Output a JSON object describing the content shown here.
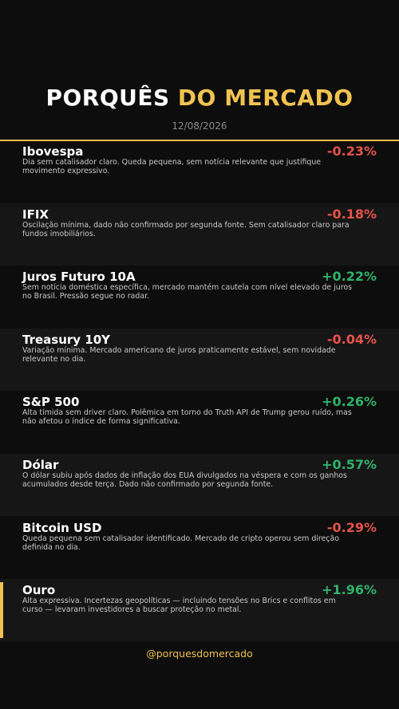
{
  "header": {
    "title_main": "PORQUÊS",
    "title_accent": "DO MERCADO",
    "date": "12/08/2026"
  },
  "items": [
    {
      "name": "Ibovespa",
      "change": "-0.23%",
      "description": "Dia sem catalisador claro. Queda pequena, sem notícia relevante que justifique movimento expressivo."
    },
    {
      "name": "IFIX",
      "change": "-0.18%",
      "description": "Oscilação mínima, dado não confirmado por segunda fonte. Sem catalisador claro para fundos imobiliários."
    },
    {
      "name": "Juros Futuro 10A",
      "change": "+0.22%",
      "description": "Sem notícia doméstica específica, mercado mantém cautela com nível elevado de juros no Brasil. Pressão segue no radar."
    },
    {
      "name": "Treasury 10Y",
      "change": "-0.04%",
      "description": "Variação mínima. Mercado americano de juros praticamente estável, sem novidade relevante no dia."
    },
    {
      "name": "S&P 500",
      "change": "+0.26%",
      "description": "Alta tímida sem driver claro. Polêmica em torno do Truth API de Trump gerou ruído, mas não afetou o índice de forma significativa."
    },
    {
      "name": "Dólar",
      "change": "+0.57%",
      "description": "O dólar subiu após dados de inflação dos EUA divulgados na véspera e com os ganhos acumulados desde terça. Dado não confirmado por segunda fonte."
    },
    {
      "name": "Bitcoin USD",
      "change": "-0.29%",
      "description": "Queda pequena sem catalisador identificado. Mercado de cripto operou sem direção definida no dia."
    },
    {
      "name": "Ouro",
      "change": "+1.96%",
      "description": "Alta expressiva. Incertezas geopolíticas — incluindo tensões no Brics e conflitos em curso — levaram investidores a buscar proteção no metal."
    }
  ],
  "footer": {
    "handle": "@porquesdomercado"
  }
}
